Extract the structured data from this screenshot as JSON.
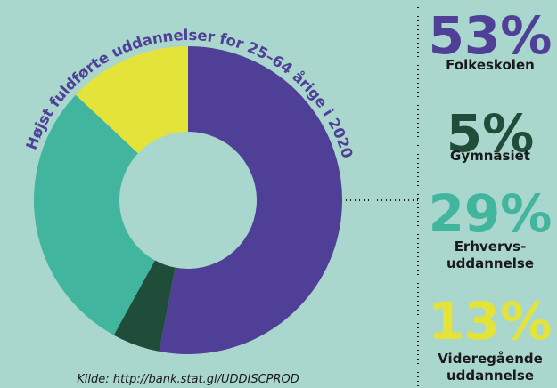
{
  "chart_data": {
    "type": "donut",
    "title": "Højst fuldførte uddannelser for 25–64 årige i 2020",
    "source": "Kilde: http://bank.stat.gl/UDDISCPROD",
    "categories": [
      "Folkeskolen",
      "Gymnasiet",
      "Erhvervs-\nuddannelse",
      "Videregående\nuddannelse"
    ],
    "values": [
      53,
      5,
      29,
      13
    ],
    "value_labels": [
      "53%",
      "5%",
      "29%",
      "13%"
    ],
    "colors": [
      "#4f3f97",
      "#1f4d3a",
      "#42b59f",
      "#e3e33a"
    ]
  }
}
